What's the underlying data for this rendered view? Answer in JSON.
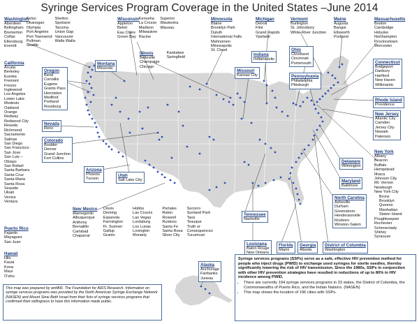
{
  "title": "Syringe Services Program Coverage in the United States –June 2014",
  "colors": {
    "land": "#d6d6d6",
    "border": "#ffffff",
    "dot": "#2f4fb8",
    "leader": "#333333",
    "state_title": "#1a3a7a",
    "box_border": "#4a6c9b"
  },
  "states": {
    "washington": {
      "name": "Washington",
      "cities": [
        "Aberdeen",
        "Bellingham",
        "Bremerton",
        "Colfax",
        "Ellensburg",
        "Everett"
      ],
      "cities2": [
        "Kelso",
        "Okanogan",
        "Olympia",
        "Port Angeles",
        "Port Townsend",
        "Pullman",
        "Seattle"
      ],
      "cities3": [
        "Shelton",
        "Spokane",
        "Tacoma",
        "Union Gap",
        "Vancouver",
        "Walla Walla"
      ]
    },
    "wisconsin": {
      "name": "Wisconsin",
      "cities": [
        "Appleton",
        "Beloit",
        "Eau Claire",
        "Green Bay"
      ],
      "cities2": [
        "Kenosha",
        "La Crosse",
        "Madison",
        "Milwaukee",
        "Racine"
      ],
      "cities3": [
        "Superior",
        "Waukesha",
        "Wausau"
      ]
    },
    "minnesota": {
      "name": "Minnesota",
      "cities": [
        "Blaine",
        "Brooklyn Park",
        "Duluth",
        "International Falls",
        "Mahnomen",
        "Minneapolis",
        "St. Cloud"
      ]
    },
    "michigan": {
      "name": "Michigan",
      "cities": [
        "Detroit",
        "Flint",
        "Grand Rapids",
        "Ypsilanti"
      ]
    },
    "vermont": {
      "name": "Vermont",
      "cities": [
        "Burlington",
        "St. Johnsbury",
        "White River Junction"
      ]
    },
    "maine": {
      "name": "Maine",
      "cities": [
        "Augusta",
        "Bangor",
        "Ellsworth",
        "Portland"
      ]
    },
    "massachusetts": {
      "name": "Massachusetts",
      "cities": [
        "Boston",
        "Cambridge",
        "Holyoke",
        "Northampton",
        "Provincetown",
        "Worcester"
      ]
    },
    "california": {
      "name": "California",
      "cities": [
        "Arcata",
        "Berkeley",
        "Eureka",
        "Fremont",
        "Fresno",
        "Inglewood",
        "Los Angeles",
        "Lower Lake",
        "Modesto",
        "Oakland",
        "Orange",
        "Redway",
        "Redwood City",
        "Reseda",
        "Richmond",
        "Sacramento",
        "Salinas",
        "San Diego",
        "San Francisco",
        "San Jose",
        "San Luis –",
        "Obispo",
        "San Rafael",
        "Santa Barbara",
        "Santa Cruz",
        "Santa Maria",
        "Santa Rosa",
        "Seaside",
        "Ukiah",
        "Venice",
        "Ventura"
      ]
    },
    "oregon": {
      "name": "Oregon",
      "cities": [
        "Bend",
        "Corvallis",
        "Eugene",
        "Grants Pass",
        "Hermiston",
        "Medford",
        "Portland",
        "Roseburg"
      ]
    },
    "montana": {
      "name": "Montana",
      "cities": [
        "Missoula"
      ]
    },
    "illinois": {
      "name": "Illinois",
      "cities": [
        "Belleville",
        "Champaign",
        "Chicago"
      ],
      "cities2": [
        "Kankakee",
        "Springfield"
      ]
    },
    "indiana": {
      "name": "Indiana",
      "cities": [
        "Indianapolis"
      ]
    },
    "ohio": {
      "name": "Ohio",
      "cities": [
        "Cleveland",
        "Cincinnati",
        "Portsmouth"
      ]
    },
    "connecticut": {
      "name": "Connecticut",
      "cities": [
        "Bridgeport",
        "Danbury",
        "Hartford",
        "New Haven",
        "Willimantic"
      ]
    },
    "missouri": {
      "name": "Missouri",
      "cities": [
        "Kansas City"
      ]
    },
    "pennsylvania": {
      "name": "Pennsylvania",
      "cities": [
        "Philadelphia",
        "Pittsburgh"
      ]
    },
    "rhode_island": {
      "name": "Rhode Island",
      "cities": [
        "Providence"
      ]
    },
    "nevada": {
      "name": "Nevada",
      "cities": [
        "Reno"
      ]
    },
    "new_jersey": {
      "name": "New Jersey",
      "cities": [
        "Atlantic City",
        "Camden",
        "Jersey City",
        "Newark",
        "Paterson"
      ]
    },
    "colorado": {
      "name": "Colorado",
      "cities": [
        "Boulder",
        "Denver",
        "Grand Junction",
        "Fort Collins"
      ]
    },
    "delaware": {
      "name": "Delaware",
      "cities": [
        "Wilmington"
      ]
    },
    "new_york": {
      "name": "New York",
      "cities": [
        "Albany",
        "Beacon",
        "Buffalo",
        "Hempstead",
        "Ithaca",
        "Johnson City",
        "Mt. Vernon",
        "Newburgh",
        "New York City"
      ],
      "indented": [
        "Bronx",
        "Brooklyn",
        "Queens",
        "Manhattan",
        "Staten Island"
      ],
      "cities_after": [
        "Poughkeepsie",
        "Rochester",
        "Schenectady",
        "Shirley",
        "Syracuse"
      ]
    },
    "arizona": {
      "name": "Arizona",
      "cities": [
        "Phoenix",
        "Tucson"
      ]
    },
    "utah": {
      "name": "Utah",
      "cities": [
        "Salt Lake City"
      ]
    },
    "maryland": {
      "name": "Maryland",
      "cities": [
        "Baltimore"
      ]
    },
    "north_carolina": {
      "name": "North Carolina",
      "cities": [
        "Asheville",
        "Durham",
        "Greensboro",
        "Hendersonville",
        "Roxboro",
        "Winston-Salem"
      ]
    },
    "new_mexico": {
      "name": "New Mexico",
      "cities": [
        "Alamogordo",
        "Albuquerque",
        "Anthony",
        "Bernalillo",
        "Carlsbad",
        "Chaparral"
      ],
      "cities2": [
        "Clovis",
        "Deming",
        "Espanola",
        "Farmington",
        "Ft. Sumner",
        "Gallup",
        "Grants"
      ],
      "cities3": [
        "Hobbs",
        "Las Cruces",
        "Las Vegas",
        "Lordsburg",
        "Los Lunas",
        "Lovington",
        "Moriarty"
      ],
      "cities4": [
        "Portales",
        "Raton",
        "Roswell",
        "Ruidoso",
        "Santa Fe",
        "Santa Rosa",
        "Silver City"
      ],
      "cities5": [
        "Socorro",
        "Sunland Park",
        "Taos",
        "Tesuque",
        "Truth or",
        "Consequences",
        "Tucumcari"
      ]
    },
    "tennessee": {
      "name": "Tennessee",
      "cities": [
        "Nashville"
      ]
    },
    "puerto_rico": {
      "name": "Puerto Rico",
      "cities": [
        "Fajardo",
        "Mayaguez",
        "San Juan"
      ]
    },
    "louisiana": {
      "name": "Louisiana",
      "cities": [
        "Baton Rouge",
        "New Orleans"
      ]
    },
    "florida": {
      "name": "Florida",
      "cities": [
        "Miami"
      ]
    },
    "georgia": {
      "name": "Georgia",
      "cities": [
        "Atlanta"
      ]
    },
    "dc": {
      "name": "District of Columbia",
      "cities": [
        "Washington"
      ]
    },
    "hawaii": {
      "name": "Hawaii",
      "cities": [
        "Hilo",
        "Kauai",
        "Kona",
        "Maui",
        "O'ahu"
      ]
    },
    "alaska": {
      "name": "Alaska",
      "cities": [
        "Anchorage",
        "Fairbanks",
        "Juneau"
      ]
    }
  },
  "info": {
    "lead": "Syringe services programs (SSPs) serve as a safe, effective HIV prevention method for people who inject drugs (PWID) to exchange used syringes for sterile needles, thereby significantly lowering the risk of HIV transmission. Since the 1980s, SSPs in conjunction with other HIV prevention strategies have resulted in reductions of up to 80% in HIV incidence among PWID.",
    "bullets": [
      "There are currently 194 syringe services programs in 33 states, the District of Columbia, the Commonwealths of Puerto Rico, and the Indian Nations. (NASEN)",
      "This map shows the location of 196 cities with SSPs."
    ]
  },
  "credit": "This map was prepared by amfAR, The Foundation for AIDS Research. Information on syringe services programs was provided by the North American Syringe Exchange Network (NASEN) and Mount Sinai Beth Israel from their lists of syringe services programs that confirmed their willingness to have this information made public."
}
